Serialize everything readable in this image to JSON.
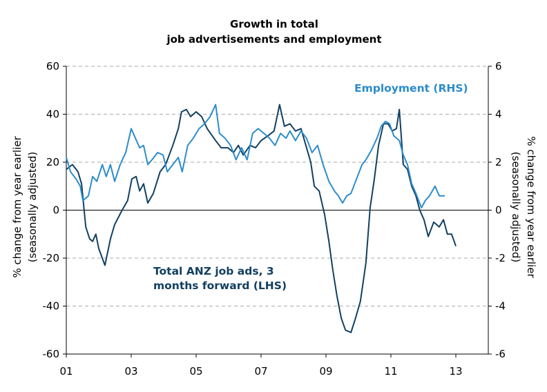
{
  "chart_data": {
    "type": "line",
    "title": [
      "Growth in total",
      "job advertisements and employment"
    ],
    "ylabel": [
      "% change from year earlier",
      "(seasonally adjusted)"
    ],
    "y2label": [
      "% change from year earlier",
      "(seasonally adjusted)"
    ],
    "xlim": [
      2001,
      2014
    ],
    "xticks": [
      {
        "value": 2001,
        "label": "01"
      },
      {
        "value": 2003,
        "label": "03"
      },
      {
        "value": 2005,
        "label": "05"
      },
      {
        "value": 2007,
        "label": "07"
      },
      {
        "value": 2009,
        "label": "09"
      },
      {
        "value": 2011,
        "label": "11"
      },
      {
        "value": 2013,
        "label": "13"
      }
    ],
    "ylim": [
      -60,
      60
    ],
    "yticks": [
      -60,
      -40,
      -20,
      0,
      20,
      40,
      60
    ],
    "y2lim": [
      -6,
      6
    ],
    "y2ticks": [
      -6,
      -4,
      -2,
      0,
      2,
      4,
      6
    ],
    "grid": true,
    "series": [
      {
        "name": "Total ANZ job ads, 3 months forward (LHS)",
        "color": "#123f60",
        "axis": "y",
        "x": [
          2001.0,
          2001.19,
          2001.36,
          2001.47,
          2001.6,
          2001.72,
          2001.81,
          2001.91,
          2002.0,
          2002.19,
          2002.36,
          2002.49,
          2002.72,
          2002.89,
          2003.02,
          2003.15,
          2003.26,
          2003.38,
          2003.51,
          2003.68,
          2003.89,
          2004.06,
          2004.28,
          2004.45,
          2004.55,
          2004.7,
          2004.83,
          2005.0,
          2005.17,
          2005.34,
          2005.6,
          2005.77,
          2005.98,
          2006.15,
          2006.3,
          2006.45,
          2006.66,
          2006.83,
          2007.0,
          2007.21,
          2007.4,
          2007.57,
          2007.72,
          2007.89,
          2008.06,
          2008.23,
          2008.38,
          2008.53,
          2008.64,
          2008.79,
          2008.96,
          2009.09,
          2009.21,
          2009.34,
          2009.47,
          2009.6,
          2009.77,
          2009.91,
          2010.06,
          2010.23,
          2010.36,
          2010.49,
          2010.62,
          2010.77,
          2010.91,
          2011.04,
          2011.17,
          2011.26,
          2011.38,
          2011.51,
          2011.64,
          2011.77,
          2011.89,
          2012.02,
          2012.15,
          2012.32,
          2012.49,
          2012.62,
          2012.74,
          2012.87,
          2013.0
        ],
        "values": [
          17,
          19,
          16,
          11,
          -7,
          -12,
          -13,
          -10,
          -16,
          -23,
          -12,
          -6,
          0,
          4,
          13,
          14,
          8,
          11,
          3,
          7,
          16,
          19,
          27,
          34,
          41,
          42,
          39,
          41,
          39,
          34,
          29,
          26,
          26,
          24,
          27,
          23,
          27,
          26,
          29,
          31,
          33,
          44,
          35,
          36,
          33,
          34,
          27,
          20,
          10,
          8,
          -2,
          -13,
          -25,
          -36,
          -45,
          -50,
          -51,
          -45,
          -38,
          -22,
          1,
          13,
          27,
          36,
          36,
          33,
          34,
          42,
          19,
          17,
          10,
          6,
          0,
          -4,
          -11,
          -5,
          -7,
          -4,
          -10,
          -10,
          -15
        ]
      },
      {
        "name": "Employment (RHS)",
        "color": "#2b8ccb",
        "axis": "y2",
        "x": [
          2001.0,
          2001.13,
          2001.3,
          2001.43,
          2001.51,
          2001.68,
          2001.81,
          2001.94,
          2002.11,
          2002.23,
          2002.36,
          2002.49,
          2002.66,
          2002.83,
          2003.0,
          2003.13,
          2003.26,
          2003.38,
          2003.51,
          2003.64,
          2003.81,
          2003.98,
          2004.11,
          2004.28,
          2004.45,
          2004.57,
          2004.74,
          2004.91,
          2005.09,
          2005.26,
          2005.43,
          2005.6,
          2005.72,
          2005.89,
          2006.06,
          2006.23,
          2006.4,
          2006.57,
          2006.74,
          2006.91,
          2007.09,
          2007.26,
          2007.43,
          2007.6,
          2007.77,
          2007.89,
          2008.06,
          2008.23,
          2008.4,
          2008.57,
          2008.74,
          2008.91,
          2009.09,
          2009.26,
          2009.38,
          2009.51,
          2009.64,
          2009.77,
          2009.94,
          2010.11,
          2010.23,
          2010.4,
          2010.57,
          2010.7,
          2010.83,
          2010.96,
          2011.09,
          2011.26,
          2011.38,
          2011.51,
          2011.64,
          2011.77,
          2011.94,
          2012.06,
          2012.19,
          2012.36,
          2012.49,
          2012.66
        ],
        "values": [
          2.2,
          1.6,
          1.3,
          1.0,
          0.4,
          0.6,
          1.4,
          1.2,
          1.9,
          1.4,
          1.9,
          1.2,
          1.9,
          2.4,
          3.4,
          3.0,
          2.6,
          2.7,
          1.9,
          2.1,
          2.4,
          2.3,
          1.6,
          1.9,
          2.2,
          1.6,
          2.7,
          3.0,
          3.4,
          3.6,
          3.9,
          4.4,
          3.2,
          3.0,
          2.7,
          2.1,
          2.6,
          2.1,
          3.2,
          3.4,
          3.2,
          3.0,
          2.7,
          3.2,
          3.0,
          3.3,
          2.9,
          3.3,
          3.0,
          2.4,
          2.7,
          1.9,
          1.2,
          0.8,
          0.6,
          0.3,
          0.6,
          0.7,
          1.3,
          1.9,
          2.1,
          2.5,
          3.0,
          3.5,
          3.7,
          3.6,
          3.1,
          2.9,
          2.3,
          1.9,
          1.1,
          0.7,
          0.1,
          0.4,
          0.6,
          1.0,
          0.6,
          0.6
        ]
      }
    ]
  }
}
